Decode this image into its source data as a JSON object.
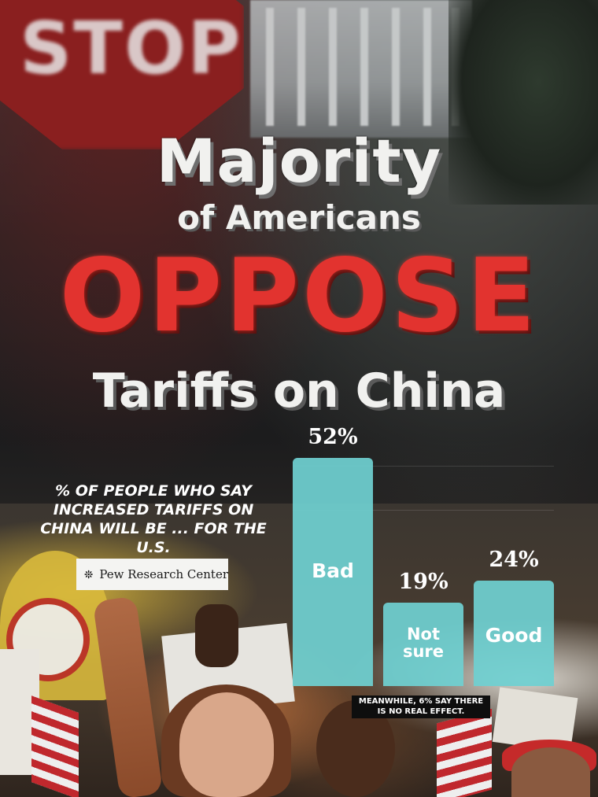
{
  "headline": {
    "line1": "Majority",
    "line2": "of Americans",
    "line3": "OPPOSE",
    "line4": "Tariffs on China"
  },
  "background_text": {
    "stop_sign": "STOP"
  },
  "subtitle": "% of people who say increased tariffs on China will be ... for the U.S.",
  "source": "Pew Research Center",
  "note": "Meanwhile, 6% say there is no real effect.",
  "colors": {
    "bar": "#6fd0d1",
    "headline_red": "#e2332f"
  },
  "chart_data": {
    "type": "bar",
    "categories": [
      "Bad",
      "Not sure",
      "Good"
    ],
    "values": [
      52,
      19,
      24
    ],
    "value_labels": [
      "52%",
      "19%",
      "24%"
    ],
    "title": "",
    "xlabel": "",
    "ylabel": "",
    "ylim": [
      0,
      52
    ],
    "grid": true
  }
}
